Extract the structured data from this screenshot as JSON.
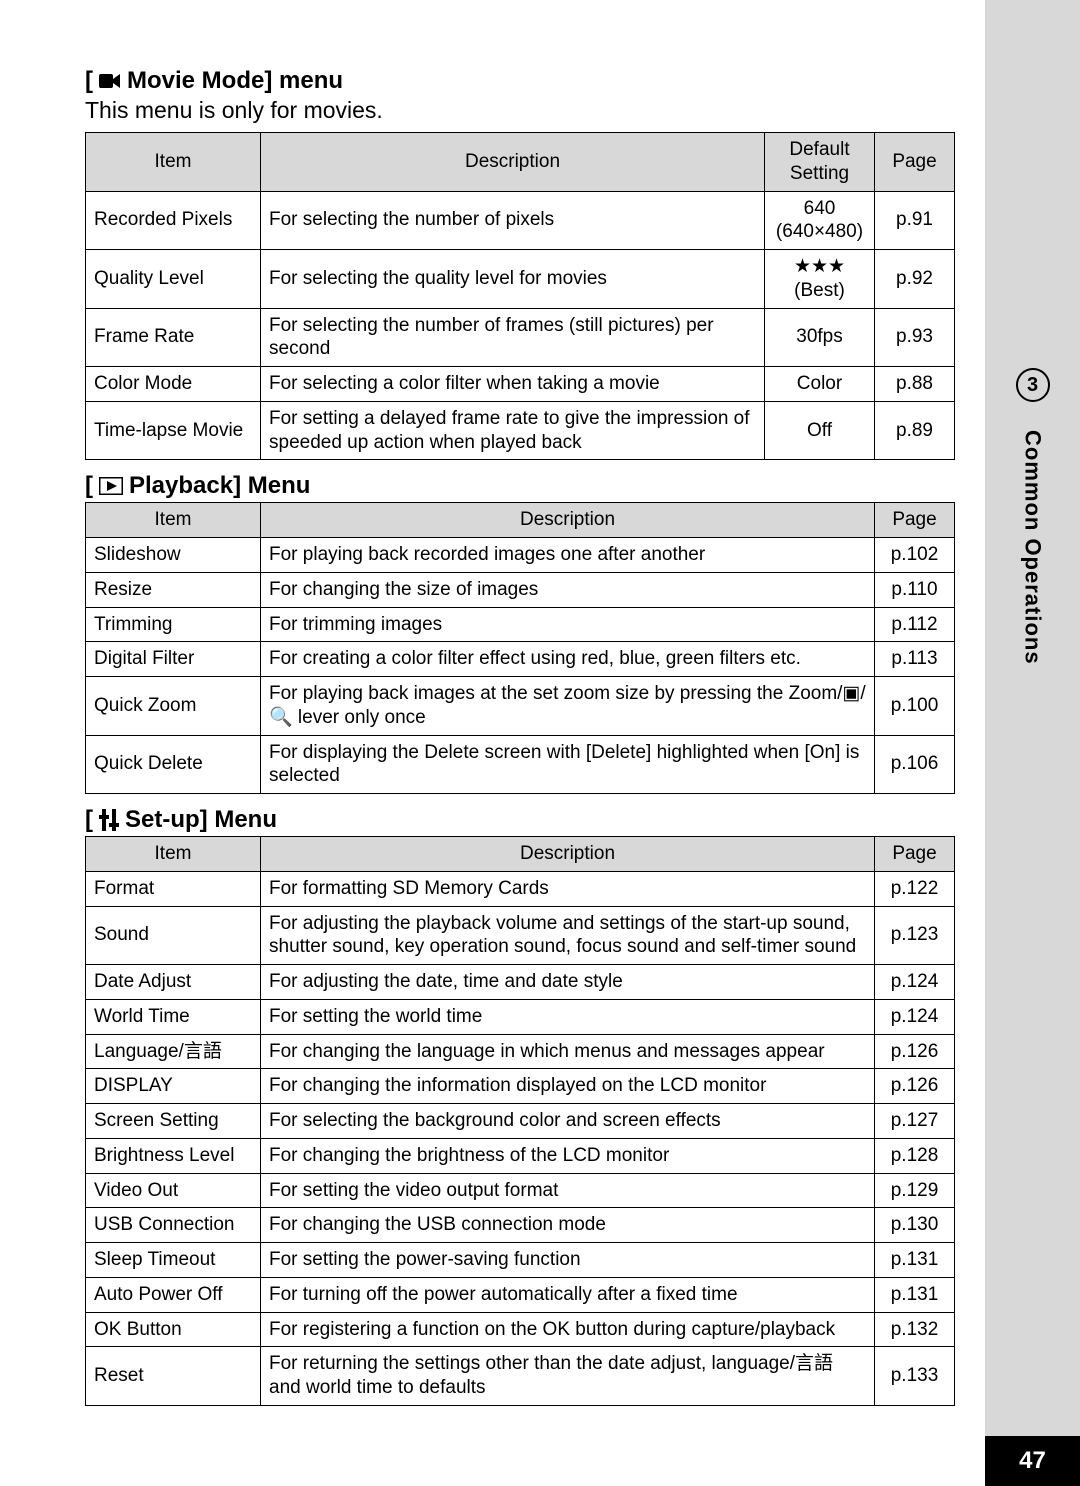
{
  "sideTab": {
    "chapterNum": "3",
    "chapterLabel": "Common Operations",
    "pageNum": "47"
  },
  "movieMode": {
    "title": "Movie Mode] menu",
    "subtitle": "This menu is only for movies.",
    "headers": {
      "item": "Item",
      "desc": "Description",
      "def": "Default Setting",
      "page": "Page"
    },
    "rows": [
      {
        "item": "Recorded Pixels",
        "desc": "For selecting the number of pixels",
        "def": "640 (640×480)",
        "page": "p.91"
      },
      {
        "item": "Quality Level",
        "desc": "For selecting the quality level for movies",
        "def": "★★★ (Best)",
        "page": "p.92"
      },
      {
        "item": "Frame Rate",
        "desc": "For selecting the number of frames (still pictures) per second",
        "def": "30fps",
        "page": "p.93"
      },
      {
        "item": "Color Mode",
        "desc": "For selecting a color filter when taking a movie",
        "def": "Color",
        "page": "p.88"
      },
      {
        "item": "Time-lapse Movie",
        "desc": "For setting a delayed frame rate to give the impression of speeded up action when played back",
        "def": "Off",
        "page": "p.89"
      }
    ]
  },
  "playback": {
    "title": "Playback] Menu",
    "headers": {
      "item": "Item",
      "desc": "Description",
      "page": "Page"
    },
    "rows": [
      {
        "item": "Slideshow",
        "desc": "For playing back recorded images one after another",
        "page": "p.102"
      },
      {
        "item": "Resize",
        "desc": "For changing the size of images",
        "page": "p.110"
      },
      {
        "item": "Trimming",
        "desc": "For trimming images",
        "page": "p.112"
      },
      {
        "item": "Digital Filter",
        "desc": "For creating a color filter effect using red, blue, green filters etc.",
        "page": "p.113"
      },
      {
        "item": "Quick Zoom",
        "desc": "For playing back images at the set zoom size by pressing the Zoom/▣/🔍 lever only once",
        "page": "p.100"
      },
      {
        "item": "Quick Delete",
        "desc": "For displaying the Delete screen with [Delete] highlighted when [On] is selected",
        "page": "p.106"
      }
    ]
  },
  "setup": {
    "title": "Set-up] Menu",
    "headers": {
      "item": "Item",
      "desc": "Description",
      "page": "Page"
    },
    "rows": [
      {
        "item": "Format",
        "desc": "For formatting SD Memory Cards",
        "page": "p.122"
      },
      {
        "item": "Sound",
        "desc": "For adjusting the playback volume and settings of the start-up sound, shutter sound, key operation sound, focus sound and self-timer sound",
        "page": "p.123"
      },
      {
        "item": "Date Adjust",
        "desc": "For adjusting the date, time and date style",
        "page": "p.124"
      },
      {
        "item": "World Time",
        "desc": "For setting the world time",
        "page": "p.124"
      },
      {
        "item": "Language/言語",
        "desc": "For changing the language in which menus and messages appear",
        "page": "p.126"
      },
      {
        "item": "DISPLAY",
        "desc": "For changing the information displayed on the LCD monitor",
        "page": "p.126"
      },
      {
        "item": "Screen Setting",
        "desc": "For selecting the background color and screen effects",
        "page": "p.127"
      },
      {
        "item": "Brightness Level",
        "desc": "For changing the brightness of the LCD monitor",
        "page": "p.128"
      },
      {
        "item": "Video Out",
        "desc": "For setting the video output format",
        "page": "p.129"
      },
      {
        "item": "USB Connection",
        "desc": "For changing the USB connection mode",
        "page": "p.130"
      },
      {
        "item": "Sleep Timeout",
        "desc": "For setting the power-saving function",
        "page": "p.131"
      },
      {
        "item": "Auto Power Off",
        "desc": "For turning off the power automatically after a fixed time",
        "page": "p.131"
      },
      {
        "item": "OK Button",
        "desc": "For registering a function on the OK button during capture/playback",
        "page": "p.132"
      },
      {
        "item": "Reset",
        "desc": "For returning the settings other than the date adjust, language/言語 and world time to defaults",
        "page": "p.133"
      }
    ]
  }
}
